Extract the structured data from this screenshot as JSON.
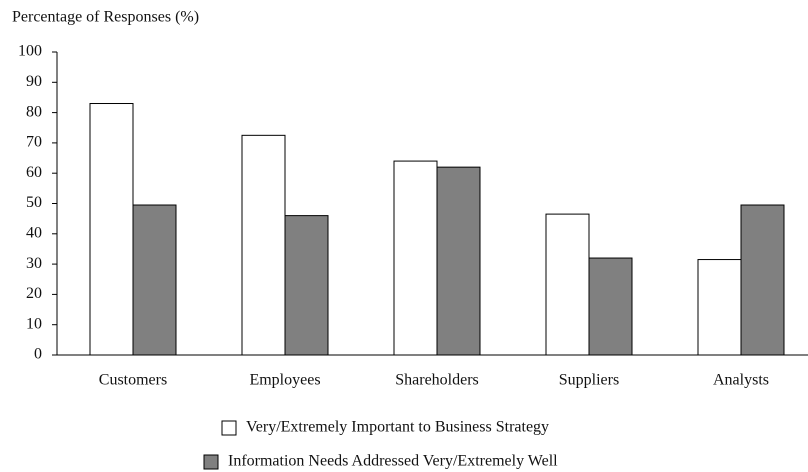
{
  "chart_data": {
    "type": "bar",
    "y_label": "Percentage of Responses (%)",
    "categories": [
      "Customers",
      "Employees",
      "Shareholders",
      "Suppliers",
      "Analysts"
    ],
    "series": [
      {
        "name": "Very/Extremely Important to Business Strategy",
        "color": "#ffffff",
        "values": [
          83,
          72.5,
          64,
          46.5,
          31.5
        ]
      },
      {
        "name": "Information Needs Addressed Very/Extremely Well",
        "color": "#808080",
        "values": [
          49.5,
          46,
          62,
          32,
          49.5
        ]
      }
    ],
    "ylim": [
      0,
      100
    ],
    "yticks": [
      0,
      10,
      20,
      30,
      40,
      50,
      60,
      70,
      80,
      90,
      100
    ]
  }
}
